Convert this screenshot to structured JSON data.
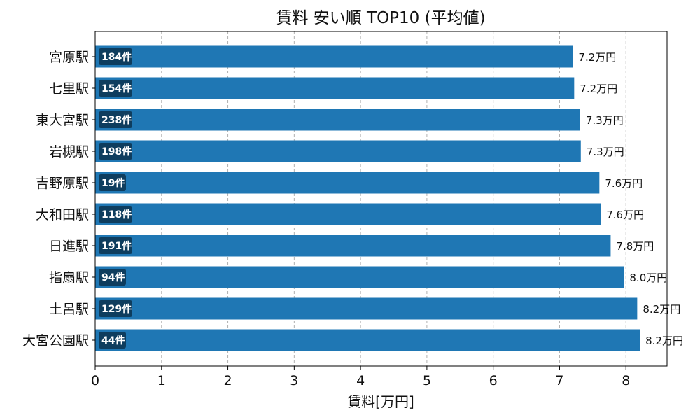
{
  "chart_data": {
    "type": "bar",
    "orientation": "horizontal",
    "title": "賃料 安い順 TOP10 (平均値)",
    "xlabel": "賃料[万円]",
    "ylabel": "",
    "xlim": [
      0,
      8.62
    ],
    "xticks": [
      0,
      1,
      2,
      3,
      4,
      5,
      6,
      7,
      8
    ],
    "grid": "x-dashed",
    "color": "#1f77b4",
    "count_badge_color": "#0e3d5e",
    "categories": [
      "宮原駅",
      "七里駅",
      "東大宮駅",
      "岩槻駅",
      "吉野原駅",
      "大和田駅",
      "日進駅",
      "指扇駅",
      "土呂駅",
      "大宮公園駅"
    ],
    "values": [
      7.2,
      7.22,
      7.31,
      7.32,
      7.6,
      7.62,
      7.77,
      7.97,
      8.17,
      8.21
    ],
    "value_labels": [
      "7.2万円",
      "7.2万円",
      "7.3万円",
      "7.3万円",
      "7.6万円",
      "7.6万円",
      "7.8万円",
      "8.0万円",
      "8.2万円",
      "8.2万円"
    ],
    "counts": [
      "184件",
      "154件",
      "238件",
      "198件",
      "19件",
      "118件",
      "191件",
      "94件",
      "129件",
      "44件"
    ]
  }
}
